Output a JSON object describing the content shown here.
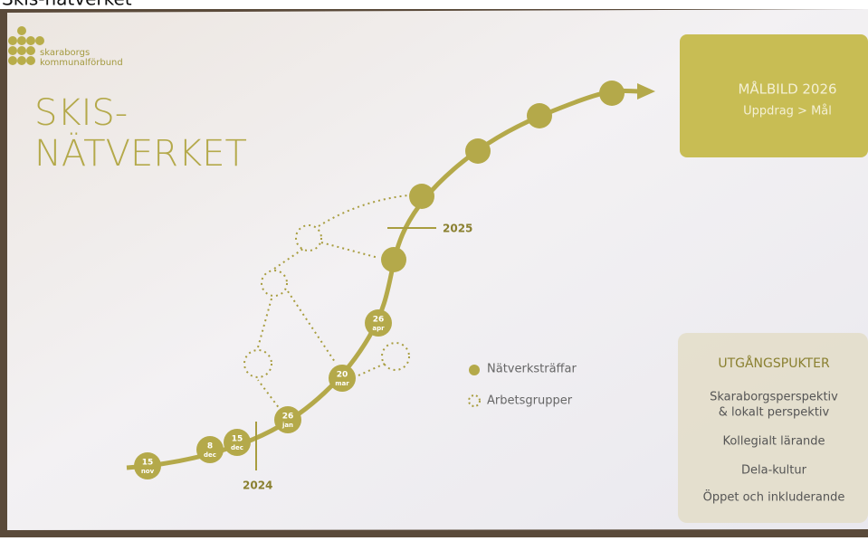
{
  "page_caption": "Skis-nätverket",
  "logo": {
    "line1": "skaraborgs",
    "line2": "kommunalförbund"
  },
  "title": {
    "line1": "SKIS-",
    "line2": "NÄTVERKET"
  },
  "goal_box": {
    "title": "MÅLBILD 2026",
    "subtitle": "Uppdrag  > Mål"
  },
  "timeline": {
    "nodes": [
      {
        "day": "15",
        "month": "nov"
      },
      {
        "day": "8",
        "month": "dec"
      },
      {
        "day": "15",
        "month": "dec"
      },
      {
        "day": "26",
        "month": "jan"
      },
      {
        "day": "20",
        "month": "mar"
      },
      {
        "day": "26",
        "month": "apr"
      }
    ],
    "years": [
      "2024",
      "2025"
    ]
  },
  "legend": {
    "meetings": "Nätverksträffar",
    "working_groups": "Arbetsgrupper"
  },
  "start_box": {
    "title": "UTGÅNGSPUKTER",
    "items": [
      "Skaraborgsperspektiv",
      "& lokalt perspektiv",
      "Kollegialt lärande",
      "Dela-kultur",
      "Öppet och inkluderande"
    ]
  }
}
